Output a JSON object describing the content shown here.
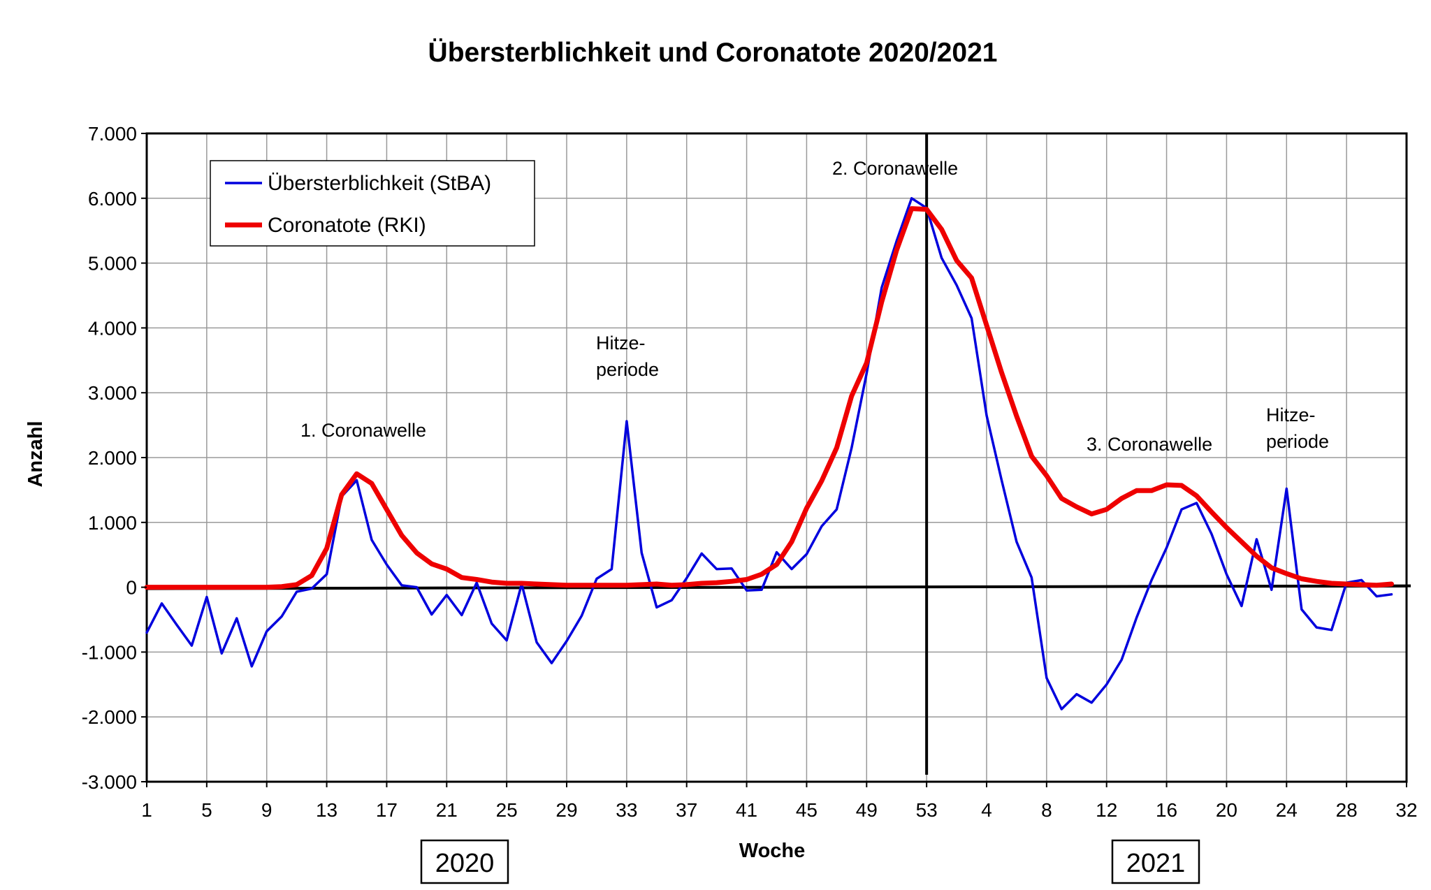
{
  "chart_data": {
    "type": "line",
    "title": "Übersterblichkeit und Coronatote 2020/2021",
    "xlabel": "Woche",
    "ylabel": "Anzahl",
    "ylim": [
      -3000,
      7000
    ],
    "y_ticks": [
      -3000,
      -2000,
      -1000,
      0,
      1000,
      2000,
      3000,
      4000,
      5000,
      6000,
      7000
    ],
    "y_tick_labels": [
      "-3.000",
      "-2.000",
      "-1.000",
      "0",
      "1.000",
      "2.000",
      "3.000",
      "4.000",
      "5.000",
      "6.000",
      "7.000"
    ],
    "x_tick_labels": [
      "1",
      "5",
      "9",
      "13",
      "17",
      "21",
      "25",
      "29",
      "33",
      "37",
      "41",
      "45",
      "49",
      "53",
      "4",
      "8",
      "12",
      "16",
      "20",
      "24",
      "28",
      "32"
    ],
    "x_tick_step_weeks": 4,
    "grid": true,
    "legend_position": "top-left",
    "year_labels": [
      "2020",
      "2021"
    ],
    "series": [
      {
        "name": "Übersterblichkeit (StBA)",
        "color": "#0000dd",
        "values": [
          -700,
          -250,
          -580,
          -900,
          -150,
          -1020,
          -480,
          -1220,
          -680,
          -450,
          -70,
          -20,
          200,
          1400,
          1650,
          730,
          350,
          30,
          0,
          -420,
          -120,
          -430,
          70,
          -560,
          -820,
          50,
          -850,
          -1170,
          -830,
          -440,
          130,
          280,
          2560,
          530,
          -310,
          -200,
          140,
          520,
          280,
          290,
          -50,
          -40,
          540,
          280,
          510,
          940,
          1200,
          2150,
          3300,
          4620,
          5340,
          6000,
          5850,
          5080,
          4660,
          4150,
          2650,
          1650,
          700,
          150,
          -1400,
          -1880,
          -1650,
          -1780,
          -1500,
          -1120,
          -470,
          110,
          610,
          1200,
          1300,
          820,
          200,
          -290,
          740,
          -40,
          1520,
          -340,
          -620,
          -660,
          70,
          110,
          -140,
          -110
        ],
        "year_start_index": 53
      },
      {
        "name": "Coronatote (RKI)",
        "color": "#ee0000",
        "values": [
          0,
          0,
          0,
          0,
          0,
          0,
          0,
          0,
          0,
          10,
          40,
          180,
          600,
          1430,
          1750,
          1600,
          1200,
          800,
          530,
          360,
          280,
          150,
          120,
          80,
          60,
          60,
          50,
          40,
          30,
          30,
          30,
          30,
          30,
          40,
          50,
          30,
          40,
          60,
          70,
          90,
          120,
          200,
          350,
          700,
          1220,
          1640,
          2150,
          2950,
          3460,
          4400,
          5200,
          5840,
          5830,
          5520,
          5040,
          4770,
          4040,
          3310,
          2640,
          2020,
          1720,
          1370,
          1240,
          1130,
          1200,
          1370,
          1490,
          1490,
          1580,
          1570,
          1410,
          1160,
          920,
          700,
          480,
          300,
          210,
          130,
          90,
          60,
          50,
          40,
          30,
          50
        ]
      }
    ],
    "annotations": [
      "1. Coronawelle",
      "Hitze-",
      "periode",
      "2. Coronawelle",
      "3. Coronawelle",
      "Hitze-",
      "periode"
    ]
  }
}
